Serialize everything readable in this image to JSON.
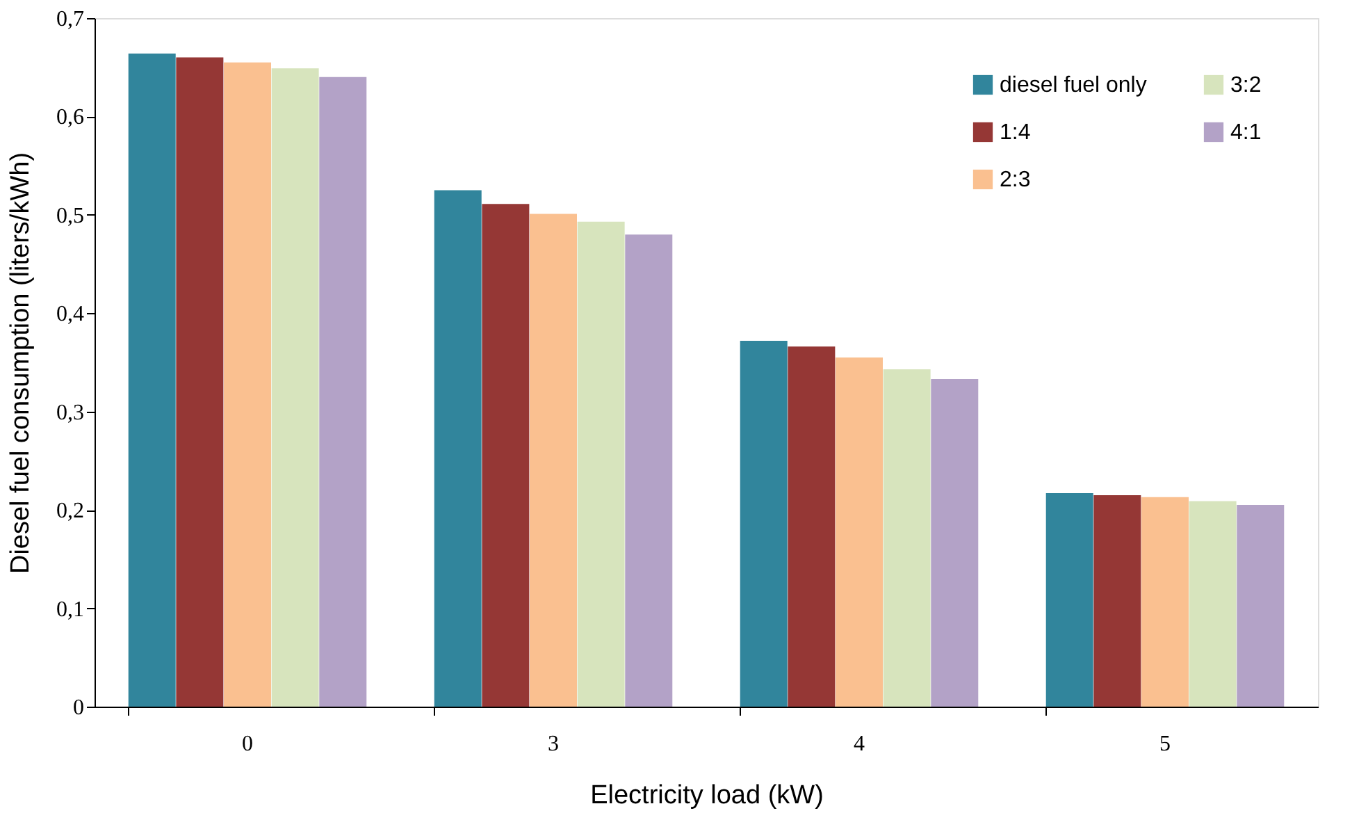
{
  "chart_data": {
    "type": "bar",
    "xlabel": "Electricity load (kW)",
    "ylabel": "Diesel fuel consumption (liters/kWh)",
    "categories": [
      "0",
      "3",
      "4",
      "5"
    ],
    "series": [
      {
        "name": "diesel fuel only",
        "color": "#31859c",
        "values": [
          0.664,
          0.525,
          0.372,
          0.217
        ]
      },
      {
        "name": "1:4",
        "color": "#953735",
        "values": [
          0.66,
          0.511,
          0.366,
          0.215
        ]
      },
      {
        "name": "2:3",
        "color": "#fac090",
        "values": [
          0.655,
          0.501,
          0.355,
          0.213
        ]
      },
      {
        "name": "3:2",
        "color": "#d7e4bd",
        "values": [
          0.649,
          0.493,
          0.343,
          0.209
        ]
      },
      {
        "name": "4:1",
        "color": "#b3a2c7",
        "values": [
          0.64,
          0.48,
          0.333,
          0.205
        ]
      }
    ],
    "ylim": [
      0,
      0.7
    ],
    "yticks": [
      0,
      {
        "value": 0.1,
        "label": "0,1"
      },
      {
        "value": 0.2,
        "label": "0,2"
      },
      {
        "value": 0.3,
        "label": "0,3"
      },
      {
        "value": 0.4,
        "label": "0,4"
      },
      {
        "value": 0.5,
        "label": "0,5"
      },
      {
        "value": 0.6,
        "label": "0,6"
      },
      {
        "value": 0.7,
        "label": "0,7"
      }
    ],
    "grid": false,
    "legend": "top right"
  }
}
